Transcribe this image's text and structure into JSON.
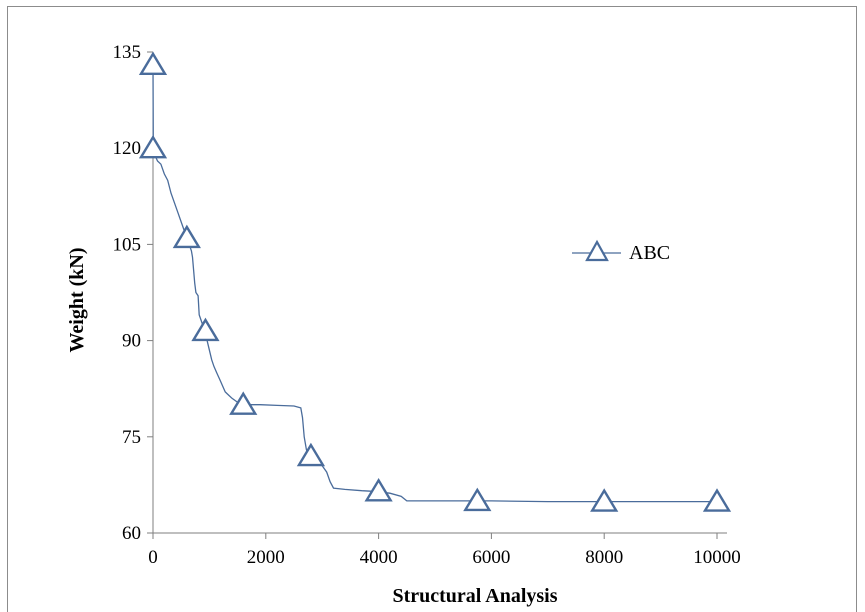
{
  "chart_data": {
    "type": "line",
    "title": "",
    "xlabel": "Structural Analysis",
    "ylabel": "Weight (kN)",
    "xlim": [
      0,
      10000
    ],
    "ylim": [
      60,
      135
    ],
    "x_ticks": [
      0,
      2000,
      4000,
      6000,
      8000,
      10000
    ],
    "y_ticks": [
      60,
      75,
      90,
      105,
      120,
      135
    ],
    "grid": false,
    "legend_position": "right-middle",
    "series": [
      {
        "name": "ABC",
        "color": "#4a6c9b",
        "marker": "triangle",
        "line": [
          [
            0,
            133
          ],
          [
            5,
            120
          ],
          [
            30,
            119
          ],
          [
            80,
            118
          ],
          [
            140,
            117.5
          ],
          [
            200,
            116
          ],
          [
            260,
            115
          ],
          [
            320,
            113
          ],
          [
            380,
            111.5
          ],
          [
            440,
            110
          ],
          [
            500,
            108.5
          ],
          [
            560,
            107
          ],
          [
            600,
            106
          ],
          [
            680,
            104
          ],
          [
            700,
            103
          ],
          [
            720,
            101
          ],
          [
            740,
            99
          ],
          [
            760,
            97.5
          ],
          [
            800,
            97
          ],
          [
            820,
            94
          ],
          [
            880,
            92.5
          ],
          [
            920,
            91
          ],
          [
            960,
            90
          ],
          [
            1000,
            88.5
          ],
          [
            1040,
            87
          ],
          [
            1080,
            86
          ],
          [
            1130,
            85
          ],
          [
            1180,
            84
          ],
          [
            1230,
            83
          ],
          [
            1280,
            82
          ],
          [
            1340,
            81.5
          ],
          [
            1400,
            81
          ],
          [
            1480,
            80.5
          ],
          [
            1560,
            80
          ],
          [
            1700,
            80
          ],
          [
            1900,
            80
          ],
          [
            2200,
            79.9
          ],
          [
            2500,
            79.8
          ],
          [
            2620,
            79.5
          ],
          [
            2650,
            78
          ],
          [
            2680,
            75
          ],
          [
            2720,
            73
          ],
          [
            2760,
            72
          ],
          [
            2800,
            71.5
          ],
          [
            2900,
            71
          ],
          [
            3000,
            70.5
          ],
          [
            3080,
            69.5
          ],
          [
            3140,
            68
          ],
          [
            3200,
            67
          ],
          [
            3400,
            66.8
          ],
          [
            3700,
            66.6
          ],
          [
            3900,
            66.5
          ],
          [
            4200,
            66.2
          ],
          [
            4400,
            65.7
          ],
          [
            4500,
            65
          ],
          [
            5000,
            65
          ],
          [
            6000,
            65
          ],
          [
            7000,
            64.9
          ],
          [
            8000,
            64.9
          ],
          [
            9000,
            64.9
          ],
          [
            10000,
            64.9
          ]
        ],
        "markers": [
          [
            0,
            133
          ],
          [
            0,
            120
          ],
          [
            600,
            106
          ],
          [
            930,
            91.5
          ],
          [
            1600,
            80
          ],
          [
            2800,
            72
          ],
          [
            4000,
            66.5
          ],
          [
            5750,
            65
          ],
          [
            8000,
            64.9
          ],
          [
            10000,
            64.9
          ]
        ]
      }
    ]
  }
}
